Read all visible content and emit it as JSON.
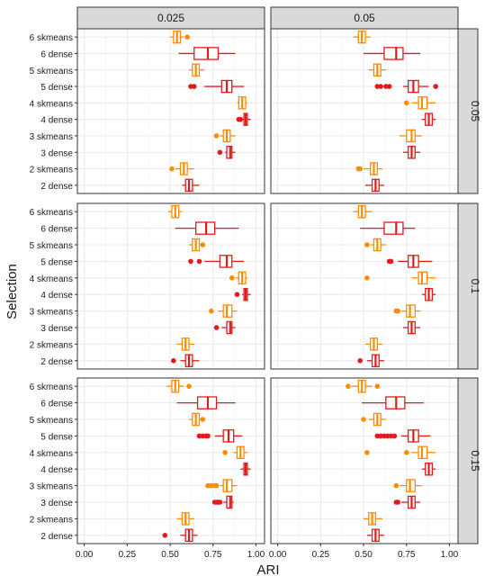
{
  "chart_data": {
    "type": "boxplot",
    "title": "",
    "xlabel": "ARI",
    "ylabel": "Selection",
    "xlim": [
      -0.04,
      1.05
    ],
    "x_ticks": [
      "0.00",
      "0.25",
      "0.50",
      "0.75",
      "1.00"
    ],
    "x_tick_values": [
      0,
      0.25,
      0.5,
      0.75,
      1.0
    ],
    "grid": true,
    "legend": "none",
    "categories": [
      "6 skmeans",
      "6 dense",
      "5 skmeans",
      "5 dense",
      "4 skmeans",
      "4 dense",
      "3 skmeans",
      "3 dense",
      "2 skmeans",
      "2 dense"
    ],
    "col_facets": [
      "0.025",
      "0.05"
    ],
    "row_facets": [
      "0.05",
      "0.1",
      "0.15"
    ],
    "colors": {
      "2": "#ff8c00",
      "3": "#ff7f00",
      "4": "#f56a1a",
      "5": "#e8212b",
      "6": "#e8212b",
      "dense": "#e31a1c",
      "skmeans": "#ff8c00"
    },
    "panels": [
      {
        "col": "0.025",
        "row": "0.05",
        "boxes": [
          {
            "label": "6 skmeans",
            "color": "#ff8c00",
            "whislo": 0.5,
            "q1": 0.52,
            "med": 0.54,
            "q3": 0.56,
            "whishi": 0.58,
            "outliers": [
              0.6
            ]
          },
          {
            "label": "6 dense",
            "color": "#e31a1c",
            "whislo": 0.55,
            "q1": 0.64,
            "med": 0.72,
            "q3": 0.78,
            "whishi": 0.88,
            "outliers": []
          },
          {
            "label": "5 skmeans",
            "color": "#ff8c00",
            "whislo": 0.61,
            "q1": 0.63,
            "med": 0.65,
            "q3": 0.67,
            "whishi": 0.7,
            "outliers": []
          },
          {
            "label": "5 dense",
            "color": "#e31a1c",
            "whislo": 0.7,
            "q1": 0.8,
            "med": 0.83,
            "q3": 0.86,
            "whishi": 0.93,
            "outliers": [
              0.62,
              0.64
            ]
          },
          {
            "label": "4 skmeans",
            "color": "#ff8c00",
            "whislo": 0.89,
            "q1": 0.9,
            "med": 0.92,
            "q3": 0.94,
            "whishi": 0.95,
            "outliers": []
          },
          {
            "label": "4 dense",
            "color": "#e31a1c",
            "whislo": 0.92,
            "q1": 0.93,
            "med": 0.94,
            "q3": 0.95,
            "whishi": 0.97,
            "outliers": [
              0.9,
              0.91
            ]
          },
          {
            "label": "3 skmeans",
            "color": "#ff8c00",
            "whislo": 0.79,
            "q1": 0.81,
            "med": 0.83,
            "q3": 0.85,
            "whishi": 0.88,
            "outliers": [
              0.77
            ]
          },
          {
            "label": "3 dense",
            "color": "#e31a1c",
            "whislo": 0.82,
            "q1": 0.83,
            "med": 0.85,
            "q3": 0.86,
            "whishi": 0.88,
            "outliers": [
              0.79
            ]
          },
          {
            "label": "2 skmeans",
            "color": "#ff8c00",
            "whislo": 0.53,
            "q1": 0.56,
            "med": 0.58,
            "q3": 0.6,
            "whishi": 0.64,
            "outliers": [
              0.51
            ]
          },
          {
            "label": "2 dense",
            "color": "#e31a1c",
            "whislo": 0.57,
            "q1": 0.59,
            "med": 0.61,
            "q3": 0.63,
            "whishi": 0.67,
            "outliers": []
          }
        ]
      },
      {
        "col": "0.05",
        "row": "0.05",
        "boxes": [
          {
            "label": "6 skmeans",
            "color": "#ff8c00",
            "whislo": 0.44,
            "q1": 0.47,
            "med": 0.49,
            "q3": 0.51,
            "whishi": 0.54,
            "outliers": []
          },
          {
            "label": "6 dense",
            "color": "#e31a1c",
            "whislo": 0.5,
            "q1": 0.62,
            "med": 0.69,
            "q3": 0.73,
            "whishi": 0.83,
            "outliers": []
          },
          {
            "label": "5 skmeans",
            "color": "#ff8c00",
            "whislo": 0.53,
            "q1": 0.56,
            "med": 0.58,
            "q3": 0.6,
            "whishi": 0.63,
            "outliers": []
          },
          {
            "label": "5 dense",
            "color": "#e31a1c",
            "whislo": 0.73,
            "q1": 0.76,
            "med": 0.79,
            "q3": 0.82,
            "whishi": 0.88,
            "outliers": [
              0.58,
              0.6,
              0.63,
              0.65,
              0.92
            ]
          },
          {
            "label": "4 skmeans",
            "color": "#ff8c00",
            "whislo": 0.78,
            "q1": 0.82,
            "med": 0.84,
            "q3": 0.87,
            "whishi": 0.92,
            "outliers": [
              0.75
            ]
          },
          {
            "label": "4 dense",
            "color": "#e31a1c",
            "whislo": 0.84,
            "q1": 0.86,
            "med": 0.88,
            "q3": 0.9,
            "whishi": 0.92,
            "outliers": []
          },
          {
            "label": "3 skmeans",
            "color": "#ff8c00",
            "whislo": 0.71,
            "q1": 0.75,
            "med": 0.78,
            "q3": 0.8,
            "whishi": 0.84,
            "outliers": []
          },
          {
            "label": "3 dense",
            "color": "#e31a1c",
            "whislo": 0.73,
            "q1": 0.76,
            "med": 0.78,
            "q3": 0.8,
            "whishi": 0.83,
            "outliers": []
          },
          {
            "label": "2 skmeans",
            "color": "#ff8c00",
            "whislo": 0.5,
            "q1": 0.54,
            "med": 0.56,
            "q3": 0.58,
            "whishi": 0.61,
            "outliers": [
              0.47,
              0.48
            ]
          },
          {
            "label": "2 dense",
            "color": "#e31a1c",
            "whislo": 0.51,
            "q1": 0.55,
            "med": 0.57,
            "q3": 0.59,
            "whishi": 0.62,
            "outliers": []
          }
        ]
      },
      {
        "col": "0.025",
        "row": "0.1",
        "boxes": [
          {
            "label": "6 skmeans",
            "color": "#ff8c00",
            "whislo": 0.49,
            "q1": 0.51,
            "med": 0.53,
            "q3": 0.55,
            "whishi": 0.57,
            "outliers": []
          },
          {
            "label": "6 dense",
            "color": "#e31a1c",
            "whislo": 0.53,
            "q1": 0.65,
            "med": 0.71,
            "q3": 0.76,
            "whishi": 0.9,
            "outliers": []
          },
          {
            "label": "5 skmeans",
            "color": "#ff8c00",
            "whislo": 0.61,
            "q1": 0.63,
            "med": 0.65,
            "q3": 0.67,
            "whishi": 0.7,
            "outliers": [
              0.69
            ]
          },
          {
            "label": "5 dense",
            "color": "#e31a1c",
            "whislo": 0.7,
            "q1": 0.79,
            "med": 0.83,
            "q3": 0.86,
            "whishi": 0.93,
            "outliers": [
              0.62,
              0.67
            ]
          },
          {
            "label": "4 skmeans",
            "color": "#ff8c00",
            "whislo": 0.88,
            "q1": 0.9,
            "med": 0.92,
            "q3": 0.94,
            "whishi": 0.95,
            "outliers": [
              0.86
            ]
          },
          {
            "label": "4 dense",
            "color": "#e31a1c",
            "whislo": 0.92,
            "q1": 0.93,
            "med": 0.94,
            "q3": 0.95,
            "whishi": 0.97,
            "outliers": [
              0.89
            ]
          },
          {
            "label": "3 skmeans",
            "color": "#ff8c00",
            "whislo": 0.78,
            "q1": 0.81,
            "med": 0.83,
            "q3": 0.86,
            "whishi": 0.89,
            "outliers": [
              0.74
            ]
          },
          {
            "label": "3 dense",
            "color": "#e31a1c",
            "whislo": 0.8,
            "q1": 0.83,
            "med": 0.85,
            "q3": 0.86,
            "whishi": 0.88,
            "outliers": [
              0.77
            ]
          },
          {
            "label": "2 skmeans",
            "color": "#ff8c00",
            "whislo": 0.54,
            "q1": 0.57,
            "med": 0.59,
            "q3": 0.61,
            "whishi": 0.64,
            "outliers": []
          },
          {
            "label": "2 dense",
            "color": "#e31a1c",
            "whislo": 0.56,
            "q1": 0.59,
            "med": 0.61,
            "q3": 0.63,
            "whishi": 0.67,
            "outliers": [
              0.52
            ]
          }
        ]
      },
      {
        "col": "0.05",
        "row": "0.1",
        "boxes": [
          {
            "label": "6 skmeans",
            "color": "#ff8c00",
            "whislo": 0.44,
            "q1": 0.47,
            "med": 0.49,
            "q3": 0.51,
            "whishi": 0.55,
            "outliers": []
          },
          {
            "label": "6 dense",
            "color": "#e31a1c",
            "whislo": 0.48,
            "q1": 0.62,
            "med": 0.69,
            "q3": 0.73,
            "whishi": 0.8,
            "outliers": []
          },
          {
            "label": "5 skmeans",
            "color": "#ff8c00",
            "whislo": 0.54,
            "q1": 0.56,
            "med": 0.58,
            "q3": 0.6,
            "whishi": 0.63,
            "outliers": [
              0.52
            ]
          },
          {
            "label": "5 dense",
            "color": "#e31a1c",
            "whislo": 0.7,
            "q1": 0.76,
            "med": 0.79,
            "q3": 0.82,
            "whishi": 0.9,
            "outliers": [
              0.65,
              0.66
            ]
          },
          {
            "label": "4 skmeans",
            "color": "#ff8c00",
            "whislo": 0.78,
            "q1": 0.82,
            "med": 0.84,
            "q3": 0.87,
            "whishi": 0.92,
            "outliers": [
              0.52
            ]
          },
          {
            "label": "4 dense",
            "color": "#e31a1c",
            "whislo": 0.84,
            "q1": 0.86,
            "med": 0.88,
            "q3": 0.9,
            "whishi": 0.92,
            "outliers": []
          },
          {
            "label": "3 skmeans",
            "color": "#ff8c00",
            "whislo": 0.72,
            "q1": 0.75,
            "med": 0.77,
            "q3": 0.8,
            "whishi": 0.83,
            "outliers": [
              0.69,
              0.7
            ]
          },
          {
            "label": "3 dense",
            "color": "#e31a1c",
            "whislo": 0.73,
            "q1": 0.76,
            "med": 0.78,
            "q3": 0.8,
            "whishi": 0.83,
            "outliers": []
          },
          {
            "label": "2 skmeans",
            "color": "#ff8c00",
            "whislo": 0.51,
            "q1": 0.54,
            "med": 0.56,
            "q3": 0.58,
            "whishi": 0.61,
            "outliers": []
          },
          {
            "label": "2 dense",
            "color": "#e31a1c",
            "whislo": 0.52,
            "q1": 0.55,
            "med": 0.57,
            "q3": 0.59,
            "whishi": 0.62,
            "outliers": [
              0.48
            ]
          }
        ]
      },
      {
        "col": "0.025",
        "row": "0.15",
        "boxes": [
          {
            "label": "6 skmeans",
            "color": "#ff8c00",
            "whislo": 0.48,
            "q1": 0.51,
            "med": 0.53,
            "q3": 0.55,
            "whishi": 0.58,
            "outliers": [
              0.61
            ]
          },
          {
            "label": "6 dense",
            "color": "#e31a1c",
            "whislo": 0.54,
            "q1": 0.66,
            "med": 0.72,
            "q3": 0.77,
            "whishi": 0.88,
            "outliers": []
          },
          {
            "label": "5 skmeans",
            "color": "#ff8c00",
            "whislo": 0.61,
            "q1": 0.63,
            "med": 0.65,
            "q3": 0.67,
            "whishi": 0.7,
            "outliers": [
              0.69
            ]
          },
          {
            "label": "5 dense",
            "color": "#e31a1c",
            "whislo": 0.76,
            "q1": 0.81,
            "med": 0.84,
            "q3": 0.87,
            "whishi": 0.92,
            "outliers": [
              0.67,
              0.69,
              0.71,
              0.72
            ]
          },
          {
            "label": "4 skmeans",
            "color": "#ff8c00",
            "whislo": 0.87,
            "q1": 0.89,
            "med": 0.91,
            "q3": 0.93,
            "whishi": 0.95,
            "outliers": [
              0.82
            ]
          },
          {
            "label": "4 dense",
            "color": "#e31a1c",
            "whislo": 0.91,
            "q1": 0.93,
            "med": 0.94,
            "q3": 0.95,
            "whishi": 0.97,
            "outliers": []
          },
          {
            "label": "3 skmeans",
            "color": "#ff8c00",
            "whislo": 0.79,
            "q1": 0.81,
            "med": 0.83,
            "q3": 0.86,
            "whishi": 0.89,
            "outliers": [
              0.72,
              0.74,
              0.76,
              0.77
            ]
          },
          {
            "label": "3 dense",
            "color": "#e31a1c",
            "whislo": 0.81,
            "q1": 0.83,
            "med": 0.85,
            "q3": 0.86,
            "whishi": 0.87,
            "outliers": [
              0.76,
              0.77,
              0.78,
              0.79
            ]
          },
          {
            "label": "2 skmeans",
            "color": "#ff8c00",
            "whislo": 0.54,
            "q1": 0.57,
            "med": 0.59,
            "q3": 0.61,
            "whishi": 0.64,
            "outliers": []
          },
          {
            "label": "2 dense",
            "color": "#e31a1c",
            "whislo": 0.56,
            "q1": 0.59,
            "med": 0.61,
            "q3": 0.63,
            "whishi": 0.66,
            "outliers": [
              0.47
            ]
          }
        ]
      },
      {
        "col": "0.05",
        "row": "0.15",
        "boxes": [
          {
            "label": "6 skmeans",
            "color": "#ff8c00",
            "whislo": 0.43,
            "q1": 0.47,
            "med": 0.49,
            "q3": 0.51,
            "whishi": 0.55,
            "outliers": [
              0.41,
              0.58
            ]
          },
          {
            "label": "6 dense",
            "color": "#e31a1c",
            "whislo": 0.49,
            "q1": 0.63,
            "med": 0.69,
            "q3": 0.74,
            "whishi": 0.85,
            "outliers": []
          },
          {
            "label": "5 skmeans",
            "color": "#ff8c00",
            "whislo": 0.53,
            "q1": 0.56,
            "med": 0.58,
            "q3": 0.6,
            "whishi": 0.63,
            "outliers": [
              0.5
            ]
          },
          {
            "label": "5 dense",
            "color": "#e31a1c",
            "whislo": 0.72,
            "q1": 0.76,
            "med": 0.79,
            "q3": 0.82,
            "whishi": 0.89,
            "outliers": [
              0.58,
              0.6,
              0.62,
              0.64,
              0.66,
              0.68
            ]
          },
          {
            "label": "4 skmeans",
            "color": "#ff8c00",
            "whislo": 0.78,
            "q1": 0.82,
            "med": 0.84,
            "q3": 0.87,
            "whishi": 0.92,
            "outliers": [
              0.52,
              0.75
            ]
          },
          {
            "label": "4 dense",
            "color": "#e31a1c",
            "whislo": 0.84,
            "q1": 0.86,
            "med": 0.88,
            "q3": 0.9,
            "whishi": 0.92,
            "outliers": []
          },
          {
            "label": "3 skmeans",
            "color": "#ff8c00",
            "whislo": 0.71,
            "q1": 0.75,
            "med": 0.77,
            "q3": 0.8,
            "whishi": 0.84,
            "outliers": [
              0.69
            ]
          },
          {
            "label": "3 dense",
            "color": "#e31a1c",
            "whislo": 0.72,
            "q1": 0.76,
            "med": 0.78,
            "q3": 0.8,
            "whishi": 0.83,
            "outliers": [
              0.69,
              0.7
            ]
          },
          {
            "label": "2 skmeans",
            "color": "#ff8c00",
            "whislo": 0.5,
            "q1": 0.53,
            "med": 0.55,
            "q3": 0.57,
            "whishi": 0.61,
            "outliers": []
          },
          {
            "label": "2 dense",
            "color": "#e31a1c",
            "whislo": 0.52,
            "q1": 0.55,
            "med": 0.57,
            "q3": 0.59,
            "whishi": 0.62,
            "outliers": []
          }
        ]
      }
    ]
  }
}
